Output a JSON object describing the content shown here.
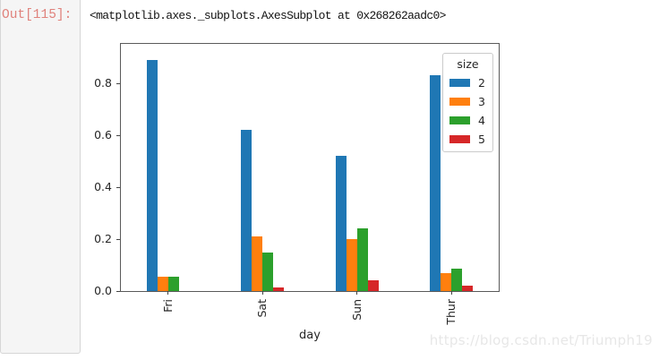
{
  "notebook": {
    "out_prompt": "Out[115]:",
    "repr_text": "<matplotlib.axes._subplots.AxesSubplot at 0x268262aadc0>"
  },
  "watermark": "https://blog.csdn.net/Triumph19",
  "colors": {
    "out_prompt": "#e0827c",
    "prompt_bg": "#f5f5f5",
    "axis_text": "#262626",
    "spine": "#5a5a5a"
  },
  "chart_data": {
    "type": "bar",
    "categories": [
      "Fri",
      "Sat",
      "Sun",
      "Thur"
    ],
    "series": [
      {
        "name": "2",
        "color": "#1f77b4",
        "values": [
          0.89,
          0.62,
          0.52,
          0.83
        ]
      },
      {
        "name": "3",
        "color": "#ff7f0e",
        "values": [
          0.055,
          0.21,
          0.2,
          0.07
        ]
      },
      {
        "name": "4",
        "color": "#2ca02c",
        "values": [
          0.055,
          0.15,
          0.24,
          0.085
        ]
      },
      {
        "name": "5",
        "color": "#d62728",
        "values": [
          0.0,
          0.015,
          0.04,
          0.02
        ]
      }
    ],
    "title": "",
    "xlabel": "day",
    "ylabel": "",
    "ylim": [
      0,
      0.95
    ],
    "yticks": [
      0.0,
      0.2,
      0.4,
      0.6,
      0.8
    ],
    "legend_title": "size",
    "legend_position": "upper right",
    "grid": false
  }
}
